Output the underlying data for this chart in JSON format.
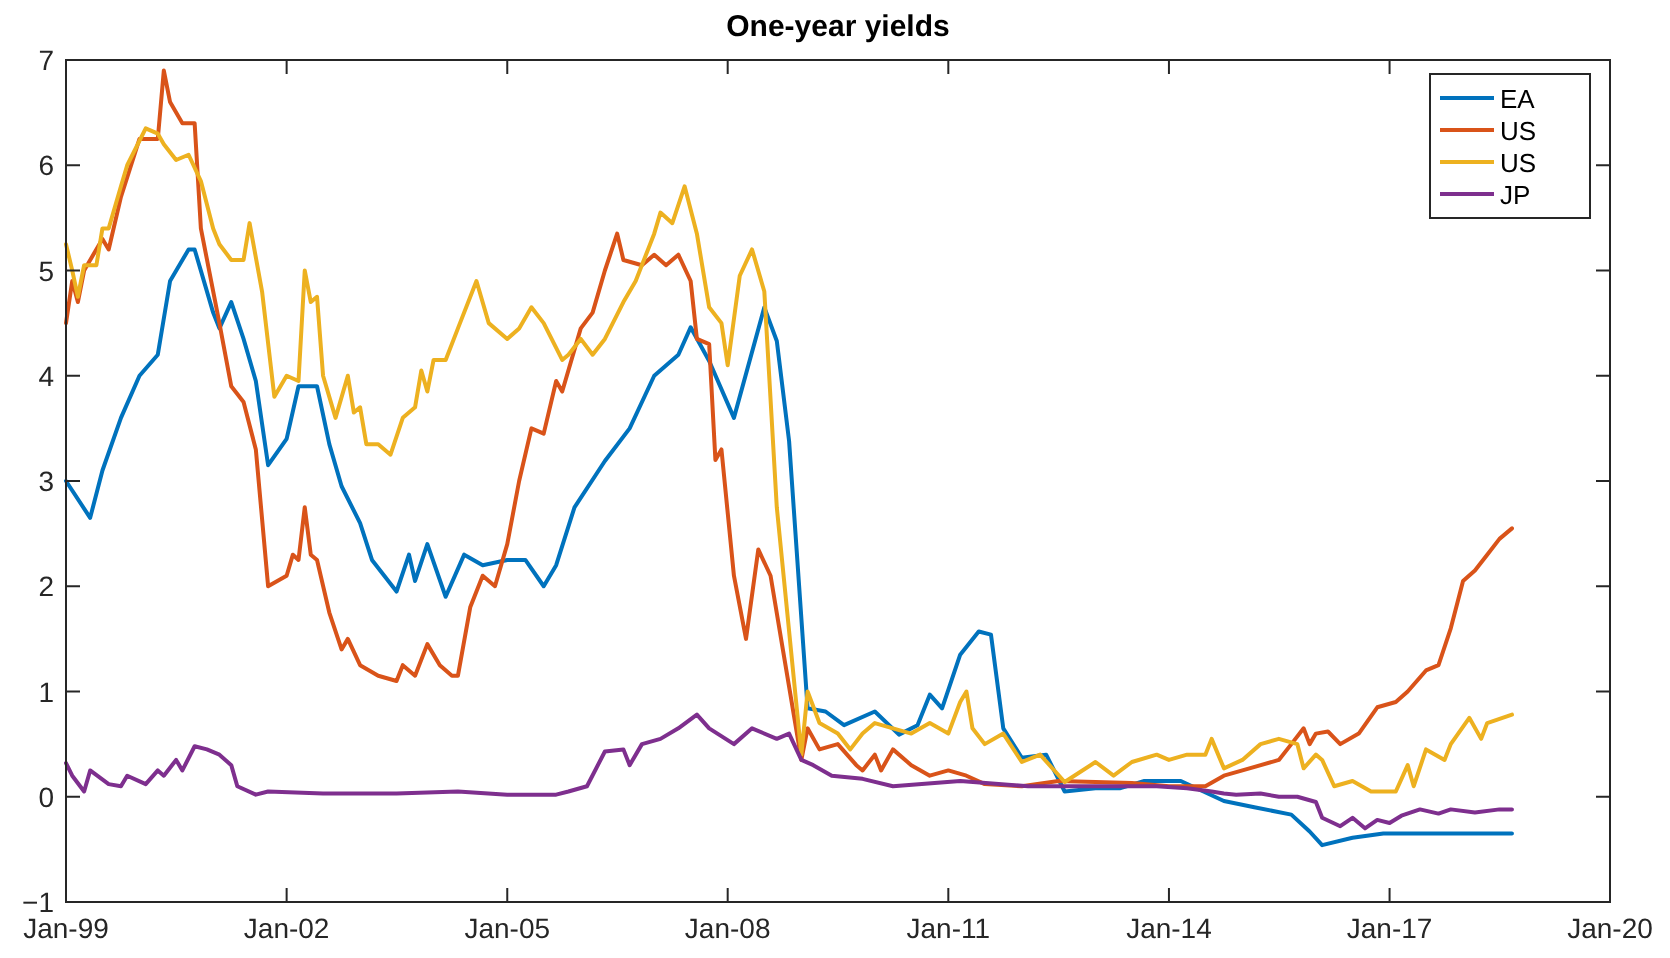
{
  "chart_data": {
    "type": "line",
    "title": "One-year yields",
    "xlim": [
      "1999-01",
      "2020-01"
    ],
    "ylim": [
      -1,
      7
    ],
    "xticks": [
      {
        "value": "1999-01",
        "label": "Jan-99"
      },
      {
        "value": "2002-01",
        "label": "Jan-02"
      },
      {
        "value": "2005-01",
        "label": "Jan-05"
      },
      {
        "value": "2008-01",
        "label": "Jan-08"
      },
      {
        "value": "2011-01",
        "label": "Jan-11"
      },
      {
        "value": "2014-01",
        "label": "Jan-14"
      },
      {
        "value": "2017-01",
        "label": "Jan-17"
      },
      {
        "value": "2020-01",
        "label": "Jan-20"
      }
    ],
    "yticks": [
      -1,
      0,
      1,
      2,
      3,
      4,
      5,
      6,
      7
    ],
    "legend": "top right",
    "line_style": "solid",
    "series": [
      {
        "name": "EA",
        "color": "#0072bd",
        "x": [
          "1999-01",
          "1999-05",
          "1999-07",
          "1999-10",
          "2000-01",
          "2000-04",
          "2000-06",
          "2000-09",
          "2000-10",
          "2001-01",
          "2001-02",
          "2001-04",
          "2001-06",
          "2001-08",
          "2001-10",
          "2002-01",
          "2002-03",
          "2002-06",
          "2002-08",
          "2002-10",
          "2003-01",
          "2003-03",
          "2003-07",
          "2003-09",
          "2003-10",
          "2003-12",
          "2004-03",
          "2004-06",
          "2004-09",
          "2005-01",
          "2005-04",
          "2005-07",
          "2005-09",
          "2005-12",
          "2006-05",
          "2006-09",
          "2007-01",
          "2007-05",
          "2007-07",
          "2007-10",
          "2008-02",
          "2008-07",
          "2008-09",
          "2008-11",
          "2009-02",
          "2009-05",
          "2009-08",
          "2010-01",
          "2010-05",
          "2010-08",
          "2010-10",
          "2010-12",
          "2011-03",
          "2011-06",
          "2011-08",
          "2011-10",
          "2012-01",
          "2012-05",
          "2012-08",
          "2013-01",
          "2013-05",
          "2013-09",
          "2014-03",
          "2014-10",
          "2015-03",
          "2015-09",
          "2015-12",
          "2016-02",
          "2016-07",
          "2016-12",
          "2017-11",
          "2018-09"
        ],
        "values": [
          3.0,
          2.65,
          3.1,
          3.6,
          4.0,
          4.2,
          4.9,
          5.2,
          5.2,
          4.6,
          4.45,
          4.7,
          4.35,
          3.95,
          3.15,
          3.4,
          3.9,
          3.9,
          3.35,
          2.95,
          2.6,
          2.25,
          1.95,
          2.3,
          2.05,
          2.4,
          1.9,
          2.3,
          2.2,
          2.25,
          2.25,
          2.0,
          2.2,
          2.75,
          3.19,
          3.5,
          4.0,
          4.2,
          4.46,
          4.14,
          3.6,
          4.65,
          4.33,
          3.38,
          0.84,
          0.81,
          0.68,
          0.81,
          0.59,
          0.68,
          0.97,
          0.84,
          1.35,
          1.57,
          1.54,
          0.65,
          0.37,
          0.4,
          0.05,
          0.08,
          0.08,
          0.15,
          0.15,
          -0.04,
          -0.1,
          -0.17,
          -0.33,
          -0.46,
          -0.39,
          -0.35,
          -0.35,
          -0.35
        ]
      },
      {
        "name": "US",
        "color": "#d95319",
        "x": [
          "1999-01",
          "1999-02",
          "1999-03",
          "1999-04",
          "1999-07",
          "1999-08",
          "1999-10",
          "2000-01",
          "2000-04",
          "2000-05",
          "2000-06",
          "2000-08",
          "2000-10",
          "2000-11",
          "2001-02",
          "2001-04",
          "2001-06",
          "2001-08",
          "2001-10",
          "2002-01",
          "2002-02",
          "2002-03",
          "2002-04",
          "2002-05",
          "2002-06",
          "2002-08",
          "2002-10",
          "2002-11",
          "2003-01",
          "2003-04",
          "2003-07",
          "2003-08",
          "2003-10",
          "2003-12",
          "2004-02",
          "2004-04",
          "2004-05",
          "2004-07",
          "2004-09",
          "2004-11",
          "2005-01",
          "2005-03",
          "2005-05",
          "2005-07",
          "2005-09",
          "2005-10",
          "2006-01",
          "2006-03",
          "2006-05",
          "2006-07",
          "2006-08",
          "2006-11",
          "2007-01",
          "2007-03",
          "2007-05",
          "2007-07",
          "2007-08",
          "2007-10",
          "2007-11",
          "2007-12",
          "2008-02",
          "2008-04",
          "2008-06",
          "2008-08",
          "2008-10",
          "2009-01",
          "2009-02",
          "2009-04",
          "2009-07",
          "2009-10",
          "2009-11",
          "2010-01",
          "2010-02",
          "2010-04",
          "2010-07",
          "2010-10",
          "2011-01",
          "2011-04",
          "2011-07",
          "2012-01",
          "2012-07",
          "2013-01",
          "2013-07",
          "2014-01",
          "2014-07",
          "2014-10",
          "2015-01",
          "2015-07",
          "2015-09",
          "2015-11",
          "2015-12",
          "2016-01",
          "2016-03",
          "2016-05",
          "2016-08",
          "2016-11",
          "2017-02",
          "2017-04",
          "2017-07",
          "2017-09",
          "2017-11",
          "2018-01",
          "2018-03",
          "2018-05",
          "2018-07",
          "2018-09"
        ],
        "values": [
          4.5,
          4.9,
          4.7,
          5.0,
          5.3,
          5.2,
          5.7,
          6.25,
          6.25,
          6.9,
          6.6,
          6.4,
          6.4,
          5.4,
          4.5,
          3.9,
          3.75,
          3.3,
          2.0,
          2.1,
          2.3,
          2.25,
          2.75,
          2.3,
          2.25,
          1.75,
          1.4,
          1.5,
          1.25,
          1.15,
          1.1,
          1.25,
          1.15,
          1.45,
          1.25,
          1.15,
          1.15,
          1.8,
          2.1,
          2.0,
          2.4,
          3.0,
          3.5,
          3.45,
          3.95,
          3.85,
          4.45,
          4.6,
          5.0,
          5.35,
          5.1,
          5.05,
          5.15,
          5.05,
          5.15,
          4.9,
          4.35,
          4.3,
          3.2,
          3.3,
          2.1,
          1.5,
          2.35,
          2.1,
          1.4,
          0.35,
          0.65,
          0.45,
          0.5,
          0.3,
          0.25,
          0.4,
          0.25,
          0.45,
          0.3,
          0.2,
          0.25,
          0.2,
          0.12,
          0.1,
          0.15,
          0.14,
          0.13,
          0.1,
          0.1,
          0.2,
          0.25,
          0.35,
          0.5,
          0.65,
          0.5,
          0.6,
          0.62,
          0.5,
          0.6,
          0.85,
          0.9,
          1.0,
          1.2,
          1.25,
          1.6,
          2.05,
          2.15,
          2.3,
          2.45,
          2.55
        ]
      },
      {
        "name": "US",
        "color": "#edb120",
        "x": [
          "1999-01",
          "1999-02",
          "1999-03",
          "1999-04",
          "1999-06",
          "1999-07",
          "1999-08",
          "1999-10",
          "1999-11",
          "2000-02",
          "2000-04",
          "2000-05",
          "2000-07",
          "2000-09",
          "2000-11",
          "2001-01",
          "2001-02",
          "2001-04",
          "2001-06",
          "2001-07",
          "2001-09",
          "2001-11",
          "2002-01",
          "2002-03",
          "2002-04",
          "2002-05",
          "2002-06",
          "2002-07",
          "2002-09",
          "2002-11",
          "2002-12",
          "2003-01",
          "2003-02",
          "2003-04",
          "2003-06",
          "2003-08",
          "2003-10",
          "2003-11",
          "2003-12",
          "2004-01",
          "2004-03",
          "2004-05",
          "2004-08",
          "2004-10",
          "2005-01",
          "2005-03",
          "2005-05",
          "2005-07",
          "2005-10",
          "2005-11",
          "2006-01",
          "2006-03",
          "2006-05",
          "2006-08",
          "2006-10",
          "2007-01",
          "2007-02",
          "2007-04",
          "2007-06",
          "2007-08",
          "2007-10",
          "2007-12",
          "2008-01",
          "2008-03",
          "2008-05",
          "2008-07",
          "2008-09",
          "2009-01",
          "2009-02",
          "2009-04",
          "2009-07",
          "2009-09",
          "2009-11",
          "2010-01",
          "2010-04",
          "2010-07",
          "2010-10",
          "2011-01",
          "2011-03",
          "2011-04",
          "2011-05",
          "2011-07",
          "2011-10",
          "2012-01",
          "2012-04",
          "2012-08",
          "2013-01",
          "2013-04",
          "2013-07",
          "2013-11",
          "2014-01",
          "2014-04",
          "2014-07",
          "2014-08",
          "2014-10",
          "2015-01",
          "2015-04",
          "2015-07",
          "2015-10",
          "2015-11",
          "2016-01",
          "2016-02",
          "2016-04",
          "2016-07",
          "2016-10",
          "2017-01",
          "2017-02",
          "2017-04",
          "2017-05",
          "2017-07",
          "2017-10",
          "2017-11",
          "2018-02",
          "2018-04",
          "2018-05",
          "2018-09"
        ],
        "values": [
          5.25,
          5.0,
          4.75,
          5.05,
          5.05,
          5.4,
          5.4,
          5.8,
          6.0,
          6.35,
          6.3,
          6.2,
          6.05,
          6.1,
          5.85,
          5.4,
          5.25,
          5.1,
          5.1,
          5.45,
          4.8,
          3.8,
          4.0,
          3.95,
          5.0,
          4.7,
          4.75,
          4.0,
          3.6,
          4.0,
          3.65,
          3.7,
          3.35,
          3.35,
          3.25,
          3.6,
          3.7,
          4.05,
          3.85,
          4.15,
          4.15,
          4.45,
          4.9,
          4.5,
          4.35,
          4.45,
          4.65,
          4.5,
          4.15,
          4.2,
          4.35,
          4.2,
          4.35,
          4.7,
          4.9,
          5.35,
          5.55,
          5.45,
          5.8,
          5.35,
          4.65,
          4.5,
          4.1,
          4.95,
          5.2,
          4.8,
          2.75,
          0.4,
          1.0,
          0.7,
          0.6,
          0.45,
          0.6,
          0.7,
          0.65,
          0.6,
          0.7,
          0.6,
          0.9,
          1.0,
          0.65,
          0.5,
          0.6,
          0.33,
          0.4,
          0.14,
          0.33,
          0.2,
          0.33,
          0.4,
          0.35,
          0.4,
          0.4,
          0.55,
          0.27,
          0.35,
          0.5,
          0.55,
          0.5,
          0.27,
          0.4,
          0.35,
          0.1,
          0.15,
          0.05,
          0.05,
          0.05,
          0.3,
          0.1,
          0.45,
          0.35,
          0.5,
          0.75,
          0.55,
          0.7,
          0.78
        ]
      },
      {
        "name": "JP",
        "color": "#7e2f8e",
        "x": [
          "1999-01",
          "1999-02",
          "1999-04",
          "1999-05",
          "1999-08",
          "1999-10",
          "1999-11",
          "2000-02",
          "2000-04",
          "2000-05",
          "2000-07",
          "2000-08",
          "2000-10",
          "2000-12",
          "2001-02",
          "2001-04",
          "2001-05",
          "2001-08",
          "2001-10",
          "2002-07",
          "2003-07",
          "2004-05",
          "2005-01",
          "2005-09",
          "2005-11",
          "2006-02",
          "2006-05",
          "2006-08",
          "2006-09",
          "2006-11",
          "2007-02",
          "2007-05",
          "2007-08",
          "2007-10",
          "2008-02",
          "2008-05",
          "2008-09",
          "2008-11",
          "2009-01",
          "2009-03",
          "2009-06",
          "2009-11",
          "2010-04",
          "2011-03",
          "2012-02",
          "2013-11",
          "2014-04",
          "2014-08",
          "2014-10",
          "2014-12",
          "2015-04",
          "2015-07",
          "2015-10",
          "2016-01",
          "2016-02",
          "2016-05",
          "2016-07",
          "2016-09",
          "2016-11",
          "2017-01",
          "2017-03",
          "2017-06",
          "2017-09",
          "2017-11",
          "2018-03",
          "2018-07",
          "2018-09"
        ],
        "values": [
          0.32,
          0.2,
          0.05,
          0.25,
          0.12,
          0.1,
          0.2,
          0.12,
          0.25,
          0.2,
          0.35,
          0.25,
          0.48,
          0.45,
          0.4,
          0.3,
          0.1,
          0.02,
          0.05,
          0.03,
          0.03,
          0.05,
          0.02,
          0.02,
          0.05,
          0.1,
          0.43,
          0.45,
          0.3,
          0.5,
          0.55,
          0.65,
          0.78,
          0.65,
          0.5,
          0.65,
          0.55,
          0.6,
          0.35,
          0.3,
          0.2,
          0.17,
          0.1,
          0.15,
          0.1,
          0.1,
          0.08,
          0.05,
          0.03,
          0.02,
          0.03,
          0.0,
          0.0,
          -0.05,
          -0.2,
          -0.28,
          -0.2,
          -0.3,
          -0.22,
          -0.25,
          -0.18,
          -0.12,
          -0.16,
          -0.12,
          -0.15,
          -0.12,
          -0.12
        ]
      }
    ]
  }
}
